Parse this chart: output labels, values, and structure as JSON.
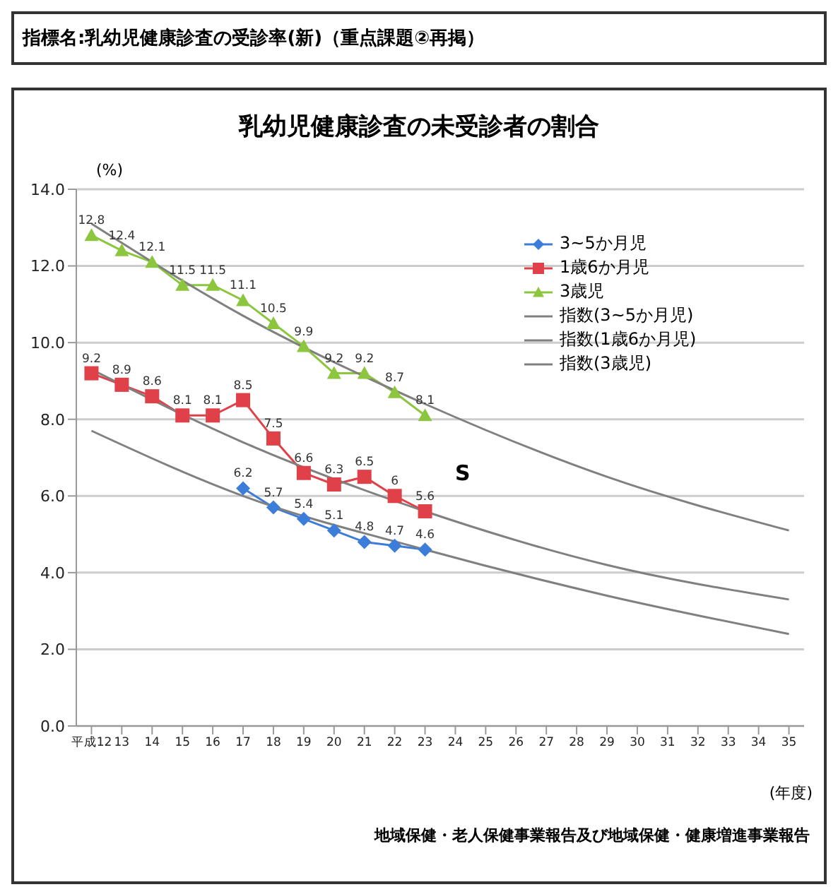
{
  "chart_data": {
    "type": "line",
    "subtitle": "指標名:乳幼児健康診査の受診率(新)（重点課題②再掲）",
    "title": "乳幼児健康診査の未受診者の割合",
    "ylabel": "(%)",
    "xlabel": "(年度)",
    "x": [
      12,
      13,
      14,
      15,
      16,
      17,
      18,
      19,
      20,
      21,
      22,
      23
    ],
    "series": [
      {
        "name": "3~5か月児",
        "color": "#3b7dd8",
        "marker": "diamond",
        "x": [
          17,
          18,
          19,
          20,
          21,
          22,
          23
        ],
        "values": [
          6.2,
          5.7,
          5.4,
          5.1,
          4.8,
          4.7,
          4.6
        ],
        "value_labels": [
          "6.2",
          "5.7",
          "5.4",
          "5.1",
          "4.8",
          "4.7",
          "4.6"
        ]
      },
      {
        "name": "1歳6か月児",
        "color": "#e04048",
        "marker": "square",
        "values": [
          9.2,
          8.9,
          8.6,
          8.1,
          8.1,
          8.5,
          7.5,
          6.6,
          6.3,
          6.5,
          6.0,
          5.6
        ],
        "value_labels": [
          "9.2",
          "8.9",
          "8.6",
          "8.1",
          "8.1",
          "8.5",
          "7.5",
          "6.6",
          "6.3",
          "6.5",
          "6",
          "5.6"
        ]
      },
      {
        "name": "3歳児",
        "color": "#8cc63f",
        "marker": "triangle",
        "values": [
          12.8,
          12.4,
          12.1,
          11.5,
          11.5,
          11.1,
          10.5,
          9.9,
          9.2,
          9.2,
          8.7,
          8.1
        ],
        "value_labels": [
          "12.8",
          "12.4",
          "12.1",
          "11.5",
          "11.5",
          "11.1",
          "10.5",
          "9.9",
          "9.2",
          "9.2",
          "8.7",
          "8.1"
        ]
      },
      {
        "name": "指数(3~5か月児)",
        "color": "#808080",
        "marker": "none",
        "x": [
          12,
          17,
          23,
          29,
          35
        ],
        "values": [
          7.7,
          6.0,
          4.6,
          3.4,
          2.4
        ]
      },
      {
        "name": "指数(1歳6か月児)",
        "color": "#808080",
        "marker": "none",
        "x": [
          12,
          17,
          23,
          29,
          35
        ],
        "values": [
          9.3,
          7.4,
          5.6,
          4.2,
          3.3
        ]
      },
      {
        "name": "指数(3歳児)",
        "color": "#808080",
        "marker": "none",
        "x": [
          12,
          17,
          23,
          29,
          35
        ],
        "values": [
          13.1,
          10.7,
          8.4,
          6.5,
          5.1
        ]
      }
    ],
    "xlim": [
      11.5,
      35.5
    ],
    "xticks": [
      {
        "value": 12,
        "label": "平成12"
      },
      13,
      14,
      15,
      16,
      17,
      18,
      19,
      20,
      21,
      22,
      23,
      24,
      25,
      26,
      27,
      28,
      29,
      30,
      31,
      32,
      33,
      34,
      35
    ],
    "ylim": [
      0,
      14
    ],
    "yticks": [
      {
        "value": 0,
        "label": "0.0"
      },
      {
        "value": 2,
        "label": "2.0"
      },
      {
        "value": 4,
        "label": "4.0"
      },
      {
        "value": 6,
        "label": "6.0"
      },
      {
        "value": 8,
        "label": "8.0"
      },
      {
        "value": 10,
        "label": "10.0"
      },
      {
        "value": 12,
        "label": "12.0"
      },
      {
        "value": 14,
        "label": "14.0"
      }
    ],
    "grid": "y",
    "legend": "top right",
    "annotations": [
      "S",
      "地域保健・老人保健事業報告及び地域保健・健康増進事業報告"
    ]
  }
}
